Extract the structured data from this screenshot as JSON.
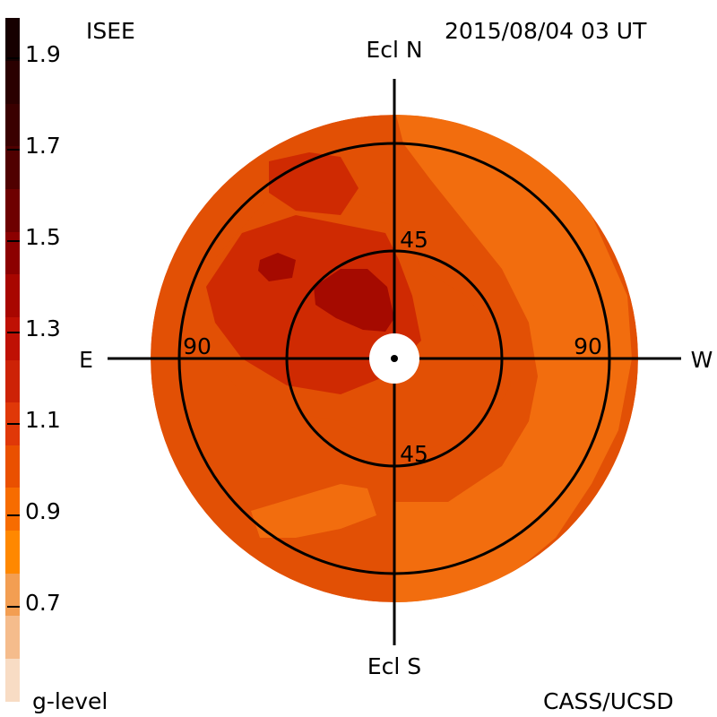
{
  "header": {
    "source": "ISEE",
    "timestamp": "2015/08/04 03 UT"
  },
  "footer": {
    "colorbar_title": "g-level",
    "credit": "CASS/UCSD"
  },
  "colorbar": {
    "ticks": [
      "1.9",
      "1.7",
      "1.5",
      "1.3",
      "1.1",
      "0.9",
      "0.7"
    ],
    "colors": [
      "#f8dcc4",
      "#f5bc8c",
      "#f39e52",
      "#ff8800",
      "#f76c00",
      "#ea5000",
      "#e03808",
      "#cd2206",
      "#bf1004",
      "#a80600",
      "#8c0000",
      "#6e0000",
      "#500000",
      "#3a0000",
      "#2a0000",
      "#160000"
    ]
  },
  "map": {
    "labels": {
      "north": "Ecl N",
      "south": "Ecl S",
      "east": "E",
      "west": "W",
      "elong_east": "90",
      "elong_west": "90",
      "elong_north": "45",
      "elong_south": "45"
    },
    "colors": {
      "outer": "#f26d0e",
      "mid": "#e25005",
      "high": "#cf2a02",
      "peak": "#a50a00"
    }
  }
}
